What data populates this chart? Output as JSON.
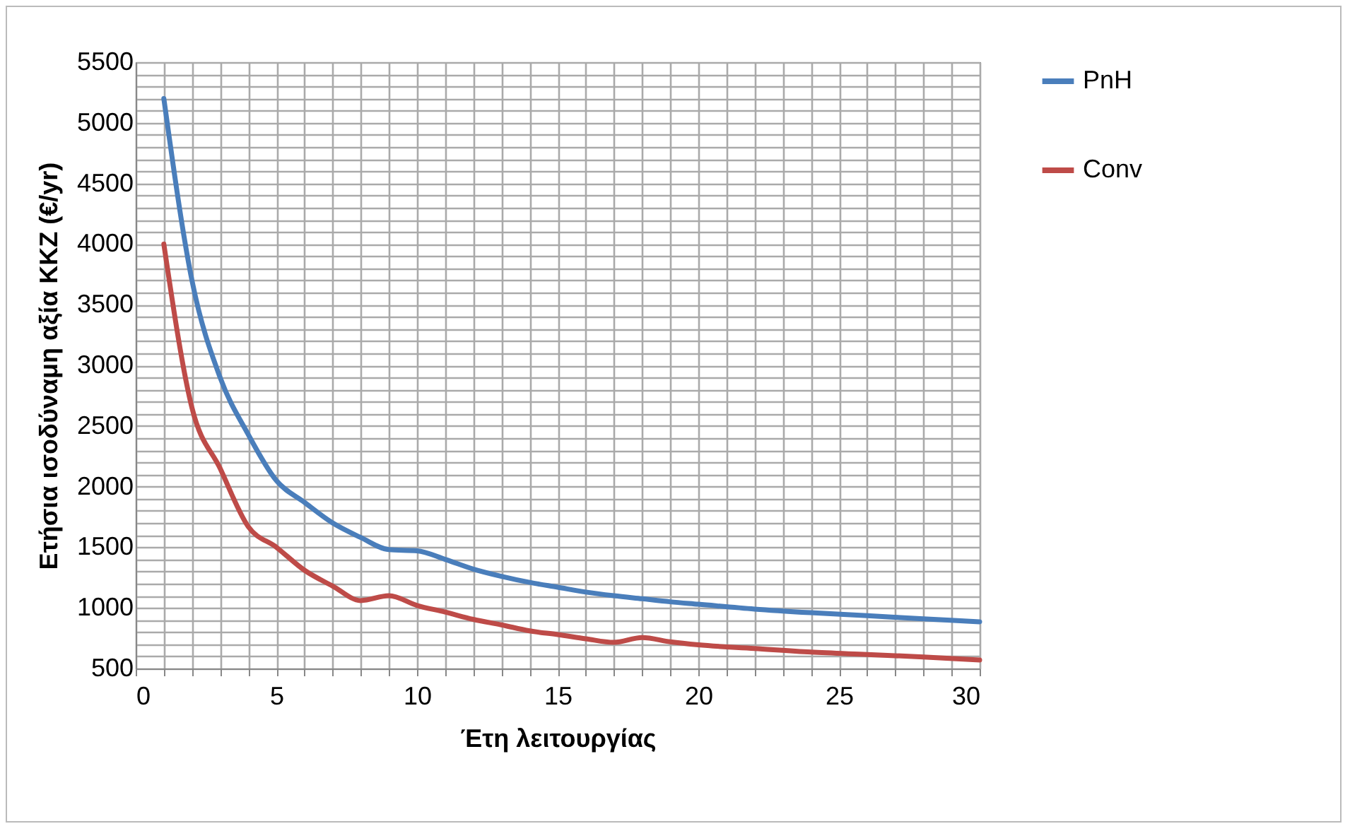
{
  "chart_data": {
    "type": "line",
    "xlabel": "Έτη λειτουργίας",
    "ylabel": "Ετήσια ισοδύναμη αξία ΚΚΖ (€/yr)",
    "x": [
      1,
      2,
      3,
      4,
      5,
      6,
      7,
      8,
      9,
      10,
      11,
      12,
      13,
      14,
      15,
      16,
      17,
      18,
      19,
      20,
      22,
      24,
      26,
      28,
      30
    ],
    "series": [
      {
        "name": "PnH",
        "color": "#4a7ebb",
        "values": [
          5200,
          3700,
          2900,
          2430,
          2050,
          1870,
          1700,
          1580,
          1480,
          1470,
          1400,
          1320,
          1260,
          1210,
          1170,
          1130,
          1100,
          1075,
          1050,
          1030,
          990,
          960,
          935,
          910,
          885
        ]
      },
      {
        "name": "Conv",
        "color": "#be4b48",
        "values": [
          4000,
          2650,
          2150,
          1670,
          1500,
          1310,
          1180,
          1060,
          1100,
          1020,
          965,
          905,
          860,
          810,
          780,
          745,
          715,
          755,
          720,
          695,
          665,
          635,
          615,
          595,
          570
        ]
      }
    ],
    "xlim": [
      0,
      30
    ],
    "ylim": [
      500,
      5500
    ],
    "xticks": [
      0,
      {
        "value": 1,
        "label": null
      },
      {
        "value": 2,
        "label": null
      },
      {
        "value": 3,
        "label": null
      },
      {
        "value": 4,
        "label": null
      },
      5,
      {
        "value": 6,
        "label": null
      },
      {
        "value": 7,
        "label": null
      },
      {
        "value": 8,
        "label": null
      },
      {
        "value": 9,
        "label": null
      },
      10,
      {
        "value": 11,
        "label": null
      },
      {
        "value": 12,
        "label": null
      },
      {
        "value": 13,
        "label": null
      },
      {
        "value": 14,
        "label": null
      },
      15,
      {
        "value": 16,
        "label": null
      },
      {
        "value": 17,
        "label": null
      },
      {
        "value": 18,
        "label": null
      },
      {
        "value": 19,
        "label": null
      },
      20,
      {
        "value": 21,
        "label": null
      },
      {
        "value": 22,
        "label": null
      },
      {
        "value": 23,
        "label": null
      },
      {
        "value": 24,
        "label": null
      },
      25,
      {
        "value": 26,
        "label": null
      },
      {
        "value": 27,
        "label": null
      },
      {
        "value": 28,
        "label": null
      },
      {
        "value": 29,
        "label": null
      },
      30
    ],
    "yticks": [
      500,
      {
        "value": 600,
        "label": null
      },
      {
        "value": 700,
        "label": null
      },
      {
        "value": 800,
        "label": null
      },
      {
        "value": 900,
        "label": null
      },
      1000,
      {
        "value": 1100,
        "label": null
      },
      {
        "value": 1200,
        "label": null
      },
      {
        "value": 1300,
        "label": null
      },
      {
        "value": 1400,
        "label": null
      },
      1500,
      {
        "value": 1600,
        "label": null
      },
      {
        "value": 1700,
        "label": null
      },
      {
        "value": 1800,
        "label": null
      },
      {
        "value": 1900,
        "label": null
      },
      2000,
      {
        "value": 2100,
        "label": null
      },
      {
        "value": 2200,
        "label": null
      },
      {
        "value": 2300,
        "label": null
      },
      {
        "value": 2400,
        "label": null
      },
      2500,
      {
        "value": 2600,
        "label": null
      },
      {
        "value": 2700,
        "label": null
      },
      {
        "value": 2800,
        "label": null
      },
      {
        "value": 2900,
        "label": null
      },
      3000,
      {
        "value": 3100,
        "label": null
      },
      {
        "value": 3200,
        "label": null
      },
      {
        "value": 3300,
        "label": null
      },
      {
        "value": 3400,
        "label": null
      },
      3500,
      {
        "value": 3600,
        "label": null
      },
      {
        "value": 3700,
        "label": null
      },
      {
        "value": 3800,
        "label": null
      },
      {
        "value": 3900,
        "label": null
      },
      4000,
      {
        "value": 4100,
        "label": null
      },
      {
        "value": 4200,
        "label": null
      },
      {
        "value": 4300,
        "label": null
      },
      {
        "value": 4400,
        "label": null
      },
      4500,
      {
        "value": 4600,
        "label": null
      },
      {
        "value": 4700,
        "label": null
      },
      {
        "value": 4800,
        "label": null
      },
      {
        "value": 4900,
        "label": null
      },
      5000,
      {
        "value": 5100,
        "label": null
      },
      {
        "value": 5200,
        "label": null
      },
      {
        "value": 5300,
        "label": null
      },
      {
        "value": 5400,
        "label": null
      },
      5500
    ],
    "grid": true,
    "legend": "right",
    "marker": "none",
    "line_style": "solid"
  }
}
